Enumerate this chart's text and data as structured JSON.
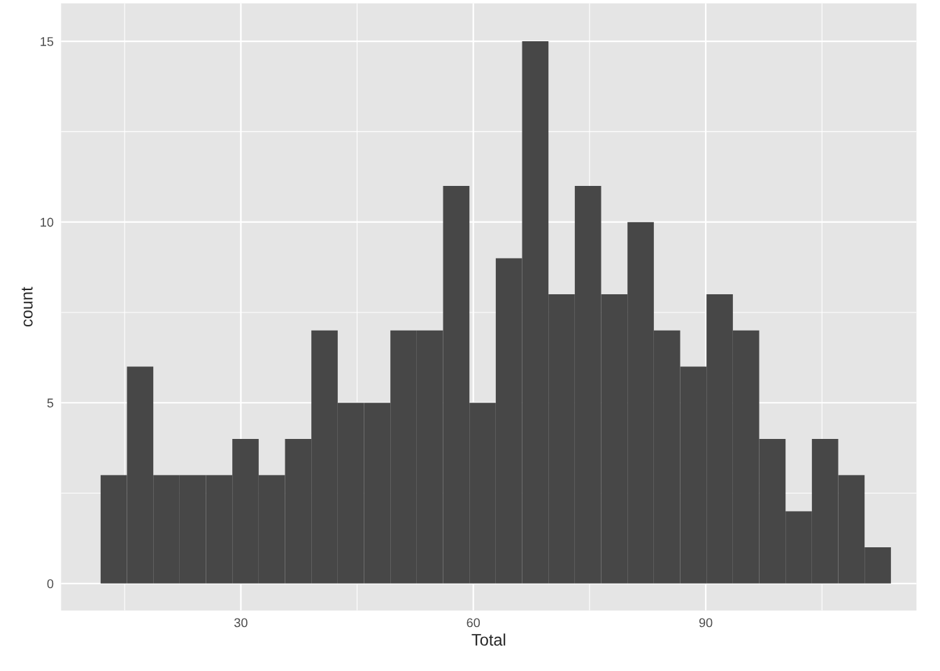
{
  "chart_data": {
    "type": "histogram",
    "xlabel": "Total",
    "ylabel": "count",
    "color": "#474747",
    "bins": [
      11.9,
      15.3,
      18.7,
      22.1,
      25.5,
      28.9,
      32.3,
      35.7,
      39.1,
      42.5,
      45.9,
      49.3,
      52.7,
      56.1,
      59.5,
      62.9,
      66.3,
      69.7,
      73.1,
      76.5,
      79.9,
      83.3,
      86.7,
      90.1,
      93.5,
      96.9,
      100.3,
      103.7,
      107.1,
      110.5,
      113.9
    ],
    "values": [
      3,
      6,
      3,
      3,
      3,
      4,
      3,
      4,
      7,
      5,
      5,
      7,
      7,
      11,
      5,
      9,
      15,
      8,
      11,
      8,
      10,
      7,
      6,
      8,
      7,
      4,
      2,
      4,
      3,
      1
    ],
    "xlim": [
      6.8,
      117.2
    ],
    "ylim": [
      -0.75,
      16.05
    ],
    "xticks": [
      30,
      60,
      90
    ],
    "yticks": [
      0,
      5,
      10,
      15
    ],
    "grid": true
  }
}
